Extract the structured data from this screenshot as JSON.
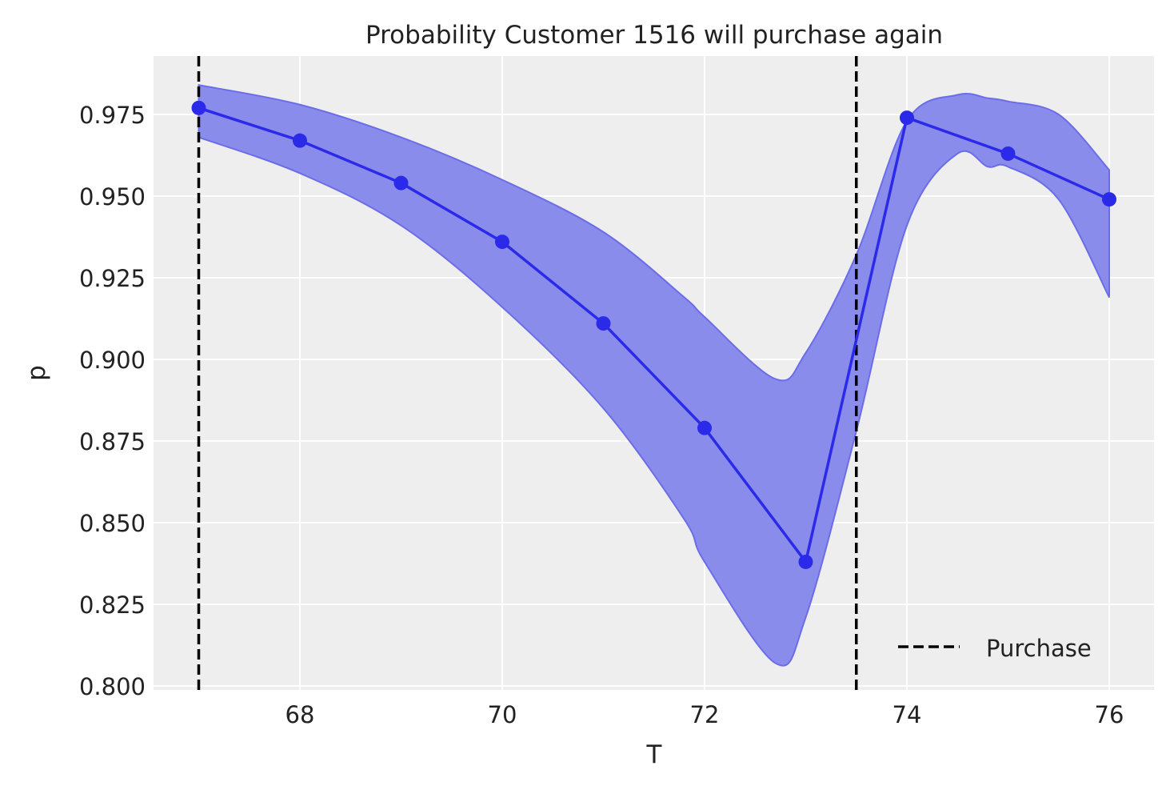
{
  "chart_data": {
    "type": "line",
    "title": "Probability Customer 1516 will purchase again",
    "xlabel": "T",
    "ylabel": "p",
    "xlim": [
      66.55,
      76.45
    ],
    "ylim": [
      0.798,
      0.99
    ],
    "xticks": [
      "68",
      "70",
      "72",
      "74",
      "76"
    ],
    "yticks": [
      "0.800",
      "0.825",
      "0.850",
      "0.875",
      "0.900",
      "0.925",
      "0.950",
      "0.975"
    ],
    "grid": true,
    "series": [
      {
        "x": [
          67,
          68,
          69,
          70,
          71,
          72,
          73,
          74,
          75,
          76
        ],
        "y": [
          0.977,
          0.967,
          0.954,
          0.936,
          0.911,
          0.879,
          0.838,
          0.974,
          0.963,
          0.949
        ],
        "color": "#2a2ae8",
        "marker": "circle"
      }
    ],
    "band": {
      "color": "#8a8cec",
      "x": [
        67,
        68,
        69,
        70,
        71,
        71.8,
        72,
        72.7,
        73,
        73.5,
        74,
        74.5,
        74.8,
        75,
        75.5,
        76
      ],
      "upper": [
        0.984,
        0.978,
        0.968,
        0.955,
        0.939,
        0.919,
        0.913,
        0.894,
        0.902,
        0.932,
        0.973,
        0.981,
        0.98,
        0.979,
        0.975,
        0.958
      ],
      "lower": [
        0.968,
        0.957,
        0.941,
        0.916,
        0.885,
        0.851,
        0.838,
        0.807,
        0.821,
        0.878,
        0.941,
        0.963,
        0.959,
        0.959,
        0.949,
        0.919
      ]
    },
    "vlines": {
      "x": [
        67,
        73.5
      ],
      "style": "dashed",
      "color": "#000000",
      "name": "Purchase"
    },
    "legend": {
      "placement": "lower-right",
      "entries": [
        "Purchase"
      ]
    },
    "background": "#eeeeee"
  }
}
